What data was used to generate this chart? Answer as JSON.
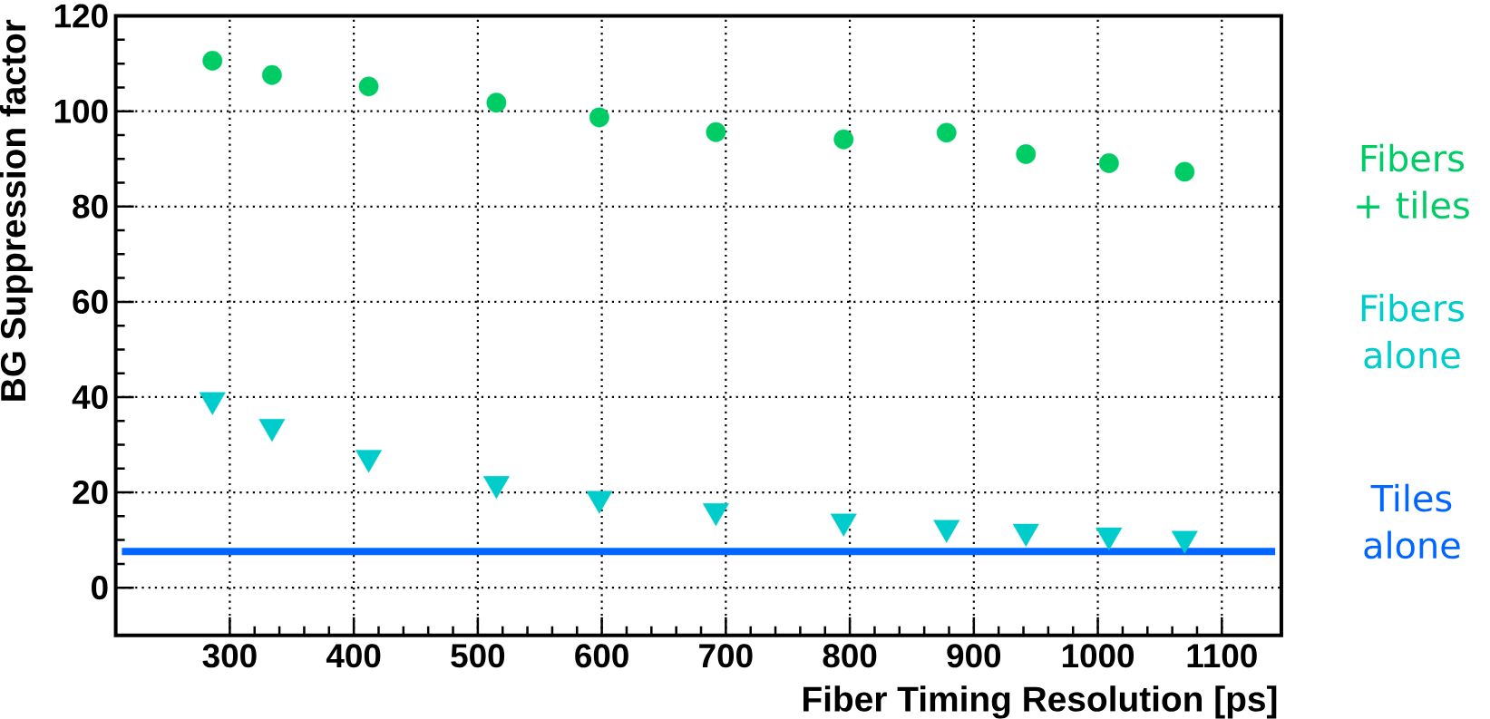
{
  "chart_data": {
    "type": "scatter",
    "xlabel": "Fiber Timing Resolution [ps]",
    "ylabel": "BG Suppression factor",
    "xlim": [
      208,
      1148
    ],
    "ylim": [
      -10,
      120
    ],
    "xticks": [
      300,
      400,
      500,
      600,
      700,
      800,
      900,
      1000,
      1100
    ],
    "yticks": [
      0,
      20,
      40,
      60,
      80,
      100,
      120
    ],
    "grid": true,
    "series": [
      {
        "name": "Fibers + tiles",
        "color": "#00cc66",
        "marker": "circle",
        "x": [
          286,
          334,
          412,
          515,
          598,
          692,
          795,
          878,
          942,
          1009,
          1070
        ],
        "values": [
          110.6,
          107.6,
          105.2,
          101.8,
          98.7,
          95.6,
          94.1,
          95.5,
          91.0,
          89.1,
          87.3
        ]
      },
      {
        "name": "Fibers alone",
        "color": "#00cccc",
        "marker": "triangle",
        "x": [
          286,
          334,
          412,
          515,
          598,
          692,
          795,
          878,
          942,
          1009,
          1070
        ],
        "values": [
          39.4,
          33.8,
          27.3,
          21.8,
          18.7,
          16.1,
          13.9,
          12.6,
          11.8,
          11.0,
          10.3
        ]
      },
      {
        "name": "Tiles alone",
        "color": "#0066ff",
        "type": "line",
        "marker": "none",
        "x": [
          213,
          1143
        ],
        "values": [
          7.6,
          7.6
        ]
      }
    ]
  }
}
